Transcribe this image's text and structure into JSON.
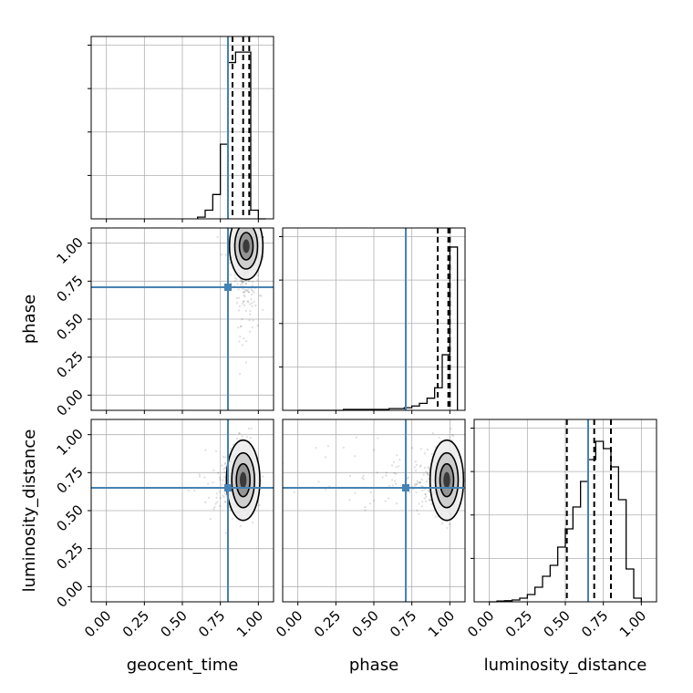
{
  "chart_data": {
    "type": "corner",
    "parameters": [
      "geocent_time",
      "phase",
      "luminosity_distance"
    ],
    "xlabels": [
      "geocent_time",
      "phase",
      "luminosity_distance"
    ],
    "ylabels": [
      "",
      "phase",
      "luminosity_distance"
    ],
    "ticks": [
      0.0,
      0.25,
      0.5,
      0.75,
      1.0
    ],
    "tick_labels": [
      "0.00",
      "0.25",
      "0.50",
      "0.75",
      "1.00"
    ],
    "range": [
      -0.1,
      1.1
    ],
    "grid": true,
    "colors": {
      "truth": "#4682b4",
      "contour": "#000000",
      "points": "#000000",
      "hist": "#000000"
    },
    "truths": {
      "geocent_time": 0.8,
      "phase": 0.71,
      "luminosity_distance": 0.65
    },
    "marginals": [
      {
        "parameter": "geocent_time",
        "ylim": [
          0,
          1.05
        ],
        "bin_edges": [
          0.6,
          0.65,
          0.7,
          0.75,
          0.8,
          0.85,
          0.9,
          0.95,
          1.0,
          1.05
        ],
        "counts": [
          0.01,
          0.05,
          0.14,
          0.43,
          0.9,
          0.96,
          0.96,
          0.05,
          0.0
        ],
        "quantiles": [
          0.83,
          0.9,
          0.94
        ]
      },
      {
        "parameter": "phase",
        "ylim": [
          0,
          1.05
        ],
        "bin_edges": [
          0.0,
          0.05,
          0.1,
          0.15,
          0.2,
          0.25,
          0.3,
          0.35,
          0.4,
          0.45,
          0.5,
          0.55,
          0.6,
          0.65,
          0.7,
          0.75,
          0.8,
          0.85,
          0.9,
          0.95,
          1.0,
          1.05
        ],
        "counts": [
          0.0,
          0.0,
          0.0,
          0.0,
          0.0,
          0.0,
          0.005,
          0.005,
          0.005,
          0.005,
          0.005,
          0.005,
          0.01,
          0.01,
          0.015,
          0.025,
          0.04,
          0.07,
          0.13,
          0.32,
          0.94
        ],
        "quantiles": [
          0.92,
          0.99,
          1.0
        ]
      },
      {
        "parameter": "luminosity_distance",
        "ylim": [
          0,
          0.5
        ],
        "bin_edges": [
          0.0,
          0.05,
          0.1,
          0.15,
          0.2,
          0.25,
          0.3,
          0.35,
          0.4,
          0.45,
          0.5,
          0.55,
          0.6,
          0.65,
          0.7,
          0.75,
          0.8,
          0.85,
          0.9,
          0.95,
          1.0
        ],
        "counts": [
          0.0,
          0.002,
          0.003,
          0.005,
          0.01,
          0.02,
          0.04,
          0.07,
          0.1,
          0.15,
          0.2,
          0.26,
          0.33,
          0.39,
          0.44,
          0.42,
          0.37,
          0.28,
          0.09,
          0.01
        ],
        "quantiles": [
          0.51,
          0.69,
          0.8
        ]
      }
    ],
    "pairs": [
      {
        "x": "geocent_time",
        "y": "phase",
        "center": [
          0.92,
          0.98
        ],
        "spread": [
          0.05,
          0.1
        ]
      },
      {
        "x": "geocent_time",
        "y": "luminosity_distance",
        "center": [
          0.9,
          0.7
        ],
        "spread": [
          0.05,
          0.12
        ]
      },
      {
        "x": "phase",
        "y": "luminosity_distance",
        "center": [
          0.98,
          0.7
        ],
        "spread": [
          0.05,
          0.12
        ]
      }
    ]
  }
}
